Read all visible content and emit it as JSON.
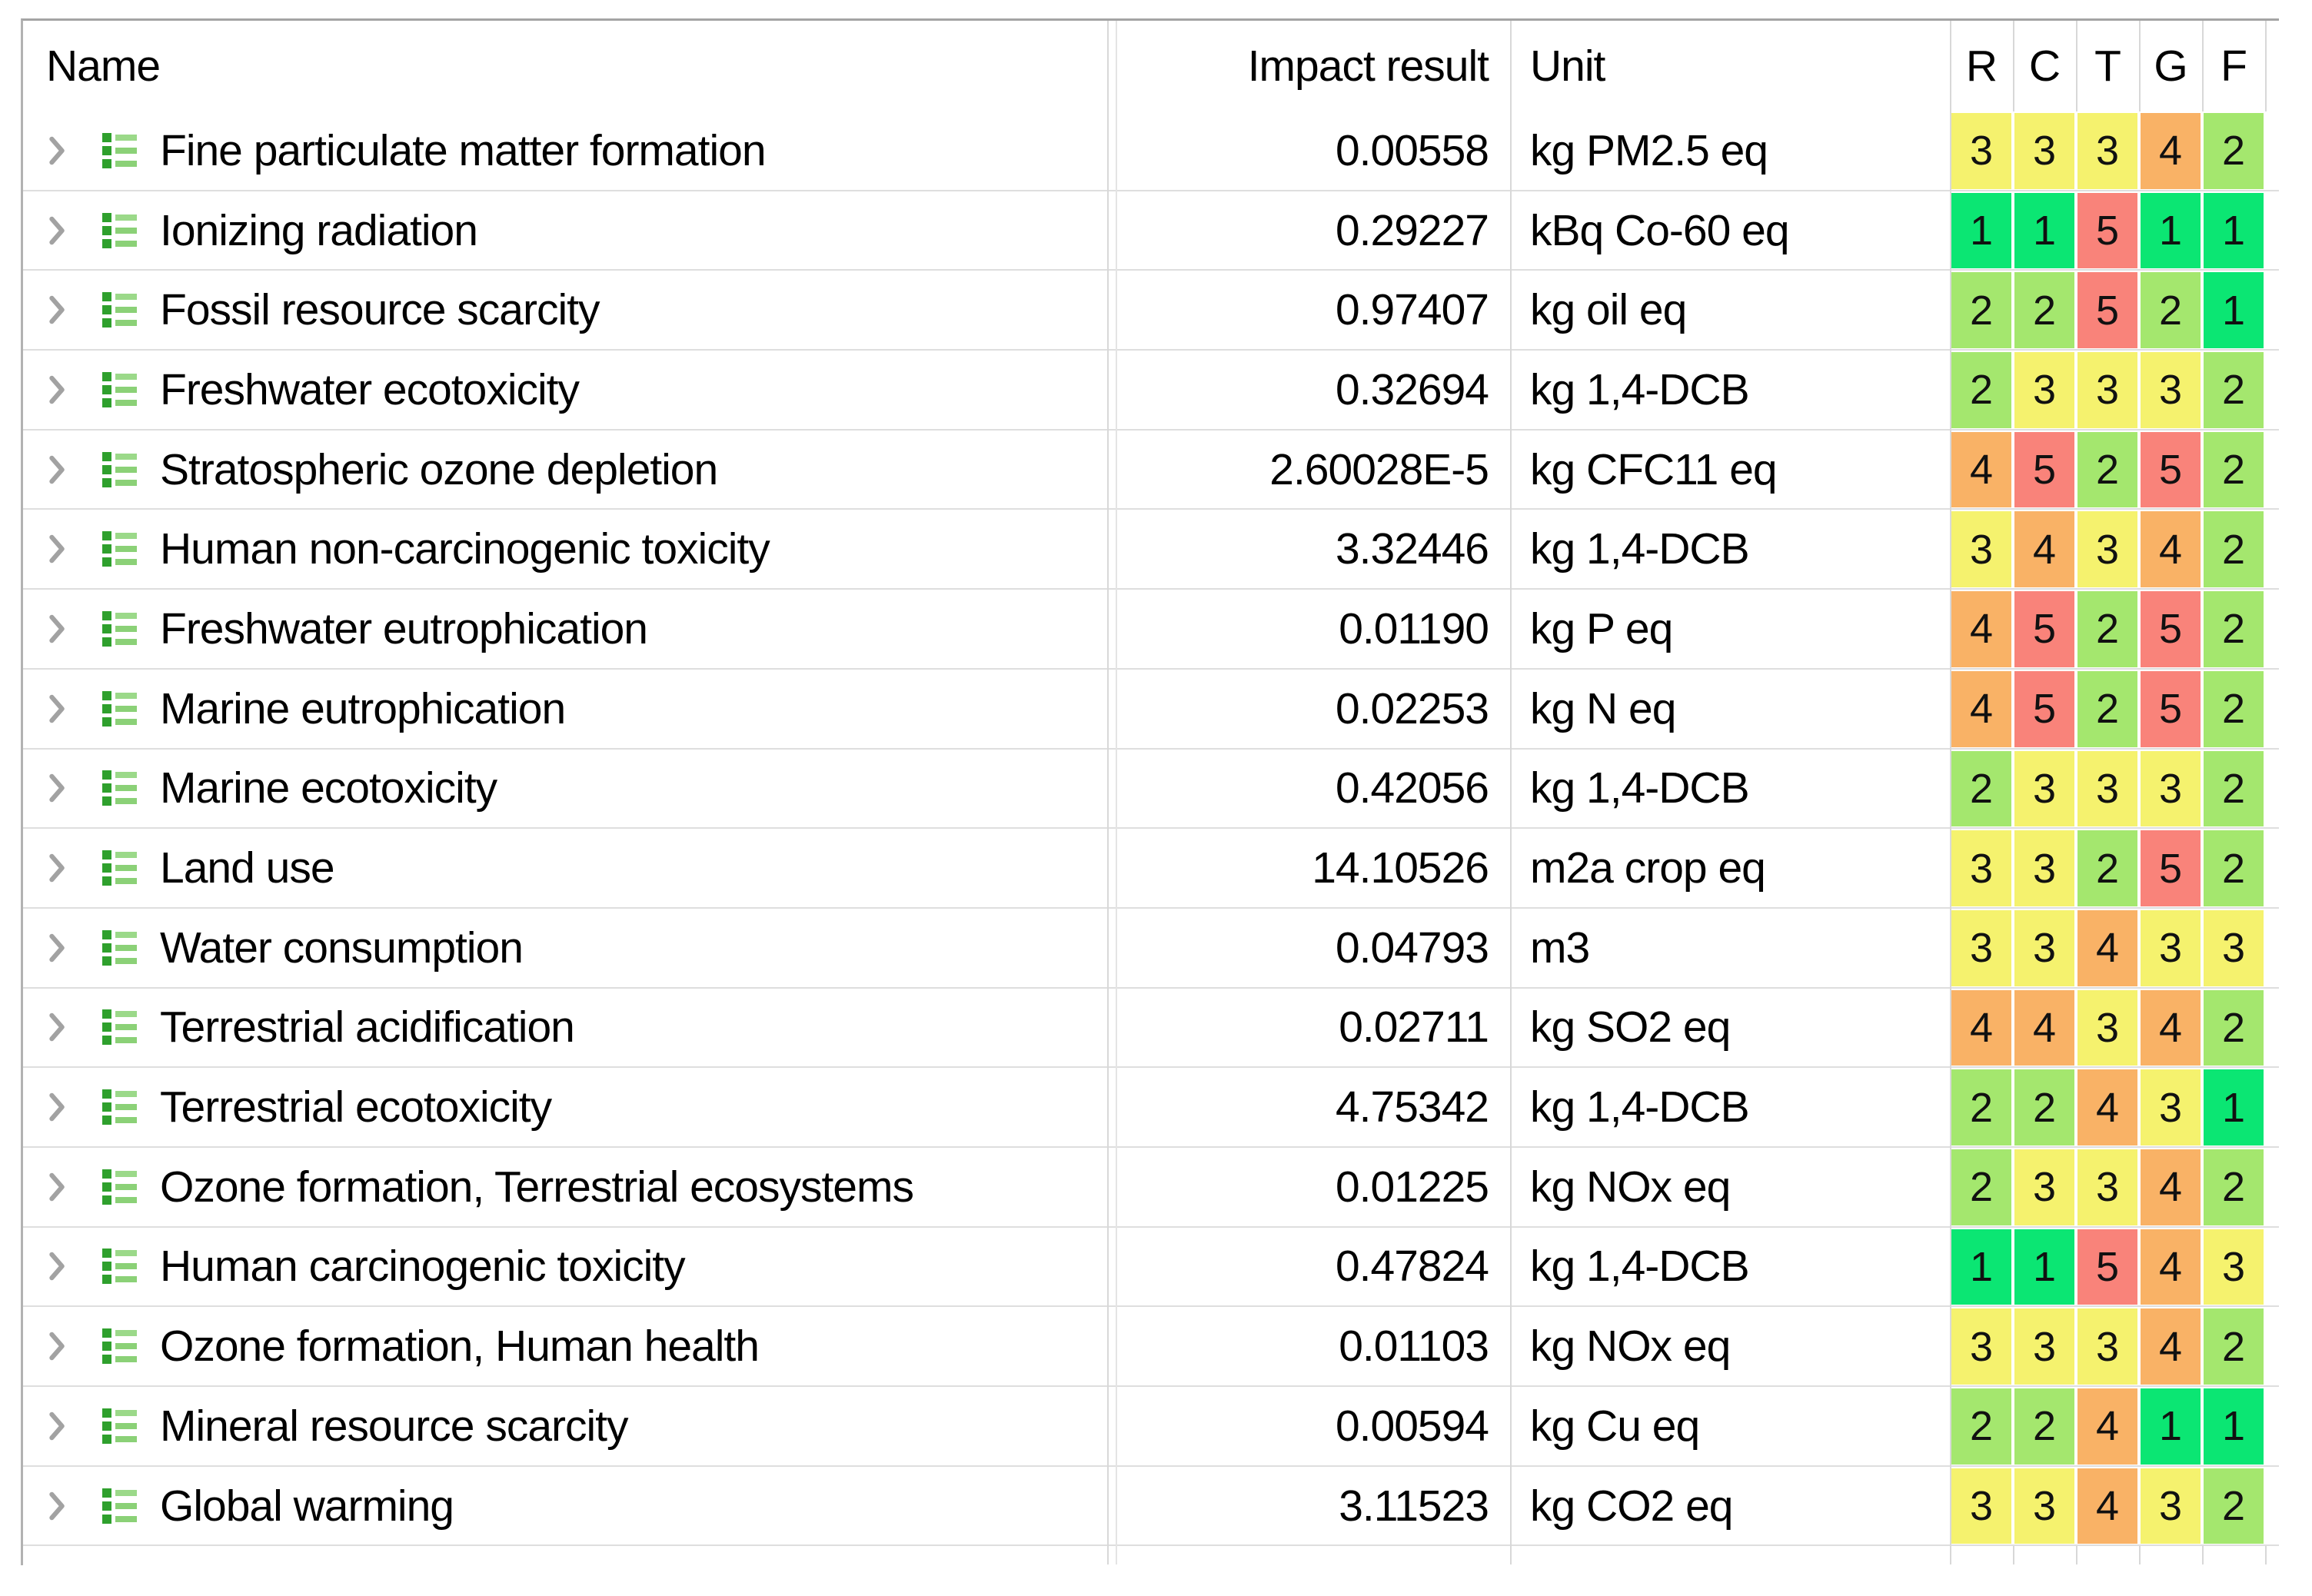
{
  "table": {
    "columns": {
      "name": "Name",
      "impact": "Impact result",
      "unit": "Unit",
      "ratings": [
        "R",
        "C",
        "T",
        "G",
        "F"
      ]
    },
    "rows": [
      {
        "name": "Fine particulate matter formation",
        "impact": "0.00558",
        "unit": "kg PM2.5 eq",
        "ratings": [
          3,
          3,
          3,
          4,
          2
        ]
      },
      {
        "name": "Ionizing radiation",
        "impact": "0.29227",
        "unit": "kBq Co-60 eq",
        "ratings": [
          1,
          1,
          5,
          1,
          1
        ]
      },
      {
        "name": "Fossil resource scarcity",
        "impact": "0.97407",
        "unit": "kg oil eq",
        "ratings": [
          2,
          2,
          5,
          2,
          1
        ]
      },
      {
        "name": "Freshwater ecotoxicity",
        "impact": "0.32694",
        "unit": "kg 1,4-DCB",
        "ratings": [
          2,
          3,
          3,
          3,
          2
        ]
      },
      {
        "name": "Stratospheric ozone depletion",
        "impact": "2.60028E-5",
        "unit": "kg CFC11 eq",
        "ratings": [
          4,
          5,
          2,
          5,
          2
        ]
      },
      {
        "name": "Human non-carcinogenic toxicity",
        "impact": "3.32446",
        "unit": "kg 1,4-DCB",
        "ratings": [
          3,
          4,
          3,
          4,
          2
        ]
      },
      {
        "name": "Freshwater eutrophication",
        "impact": "0.01190",
        "unit": "kg P eq",
        "ratings": [
          4,
          5,
          2,
          5,
          2
        ]
      },
      {
        "name": "Marine eutrophication",
        "impact": "0.02253",
        "unit": "kg N eq",
        "ratings": [
          4,
          5,
          2,
          5,
          2
        ]
      },
      {
        "name": "Marine ecotoxicity",
        "impact": "0.42056",
        "unit": "kg 1,4-DCB",
        "ratings": [
          2,
          3,
          3,
          3,
          2
        ]
      },
      {
        "name": "Land use",
        "impact": "14.10526",
        "unit": "m2a crop eq",
        "ratings": [
          3,
          3,
          2,
          5,
          2
        ]
      },
      {
        "name": "Water consumption",
        "impact": "0.04793",
        "unit": "m3",
        "ratings": [
          3,
          3,
          4,
          3,
          3
        ]
      },
      {
        "name": "Terrestrial acidification",
        "impact": "0.02711",
        "unit": "kg SO2 eq",
        "ratings": [
          4,
          4,
          3,
          4,
          2
        ]
      },
      {
        "name": "Terrestrial ecotoxicity",
        "impact": "4.75342",
        "unit": "kg 1,4-DCB",
        "ratings": [
          2,
          2,
          4,
          3,
          1
        ]
      },
      {
        "name": "Ozone formation, Terrestrial ecosystems",
        "impact": "0.01225",
        "unit": "kg NOx eq",
        "ratings": [
          2,
          3,
          3,
          4,
          2
        ]
      },
      {
        "name": "Human carcinogenic toxicity",
        "impact": "0.47824",
        "unit": "kg 1,4-DCB",
        "ratings": [
          1,
          1,
          5,
          4,
          3
        ]
      },
      {
        "name": "Ozone formation, Human health",
        "impact": "0.01103",
        "unit": "kg NOx eq",
        "ratings": [
          3,
          3,
          3,
          4,
          2
        ]
      },
      {
        "name": "Mineral resource scarcity",
        "impact": "0.00594",
        "unit": "kg Cu eq",
        "ratings": [
          2,
          2,
          4,
          1,
          1
        ]
      },
      {
        "name": "Global warming",
        "impact": "3.11523",
        "unit": "kg CO2 eq",
        "ratings": [
          3,
          3,
          4,
          3,
          2
        ]
      }
    ]
  },
  "rating_colors": {
    "1": "#0be673",
    "2": "#a4e76e",
    "3": "#f5f26e",
    "4": "#f9b266",
    "5": "#f9837a"
  },
  "icons": {
    "expand": "chevron-right",
    "category": "impact-category-list"
  }
}
